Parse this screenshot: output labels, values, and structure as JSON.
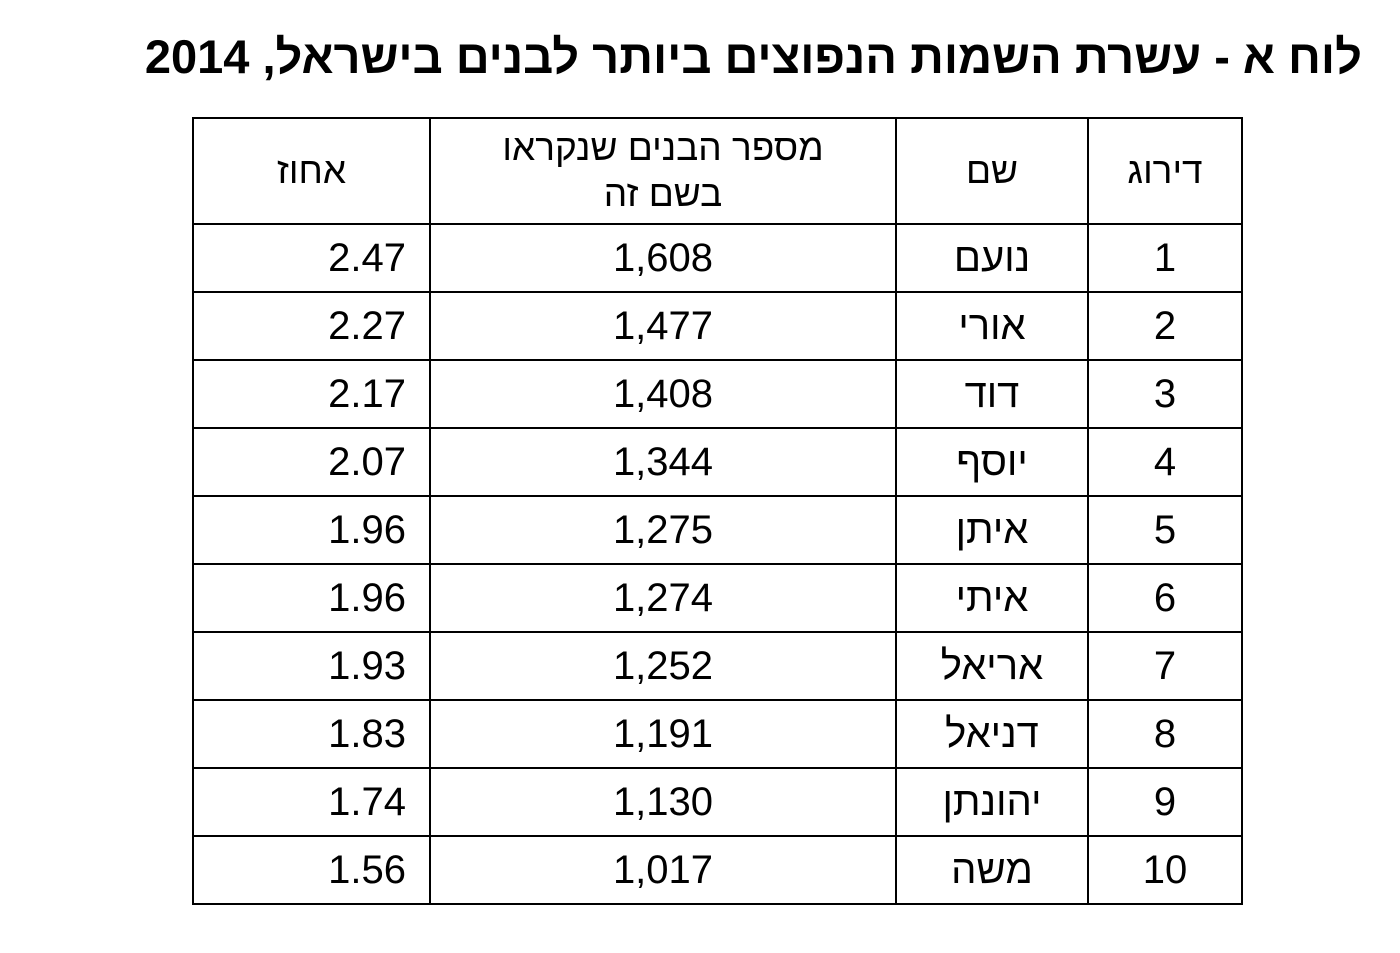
{
  "header": {
    "title": "לוח א - עשרת השמות הנפוצים ביותר לבנים בישראל, 2014"
  },
  "table": {
    "columns": [
      "דירוג",
      "שם",
      "מספר הבנים שנקראו בשם זה",
      "אחוז"
    ],
    "rows": [
      [
        "1",
        "נועם",
        "1,608",
        "2.47"
      ],
      [
        "2",
        "אורי",
        "1,477",
        "2.27"
      ],
      [
        "3",
        "דוד",
        "1,408",
        "2.17"
      ],
      [
        "4",
        "יוסף",
        "1,344",
        "2.07"
      ],
      [
        "5",
        "איתן",
        "1,275",
        "1.96"
      ],
      [
        "6",
        "איתי",
        "1,274",
        "1.96"
      ],
      [
        "7",
        "אריאל",
        "1,252",
        "1.93"
      ],
      [
        "8",
        "דניאל",
        "1,191",
        "1.83"
      ],
      [
        "9",
        "יהונתן",
        "1,130",
        "1.74"
      ],
      [
        "10",
        "משה",
        "1,017",
        "1.56"
      ]
    ]
  }
}
